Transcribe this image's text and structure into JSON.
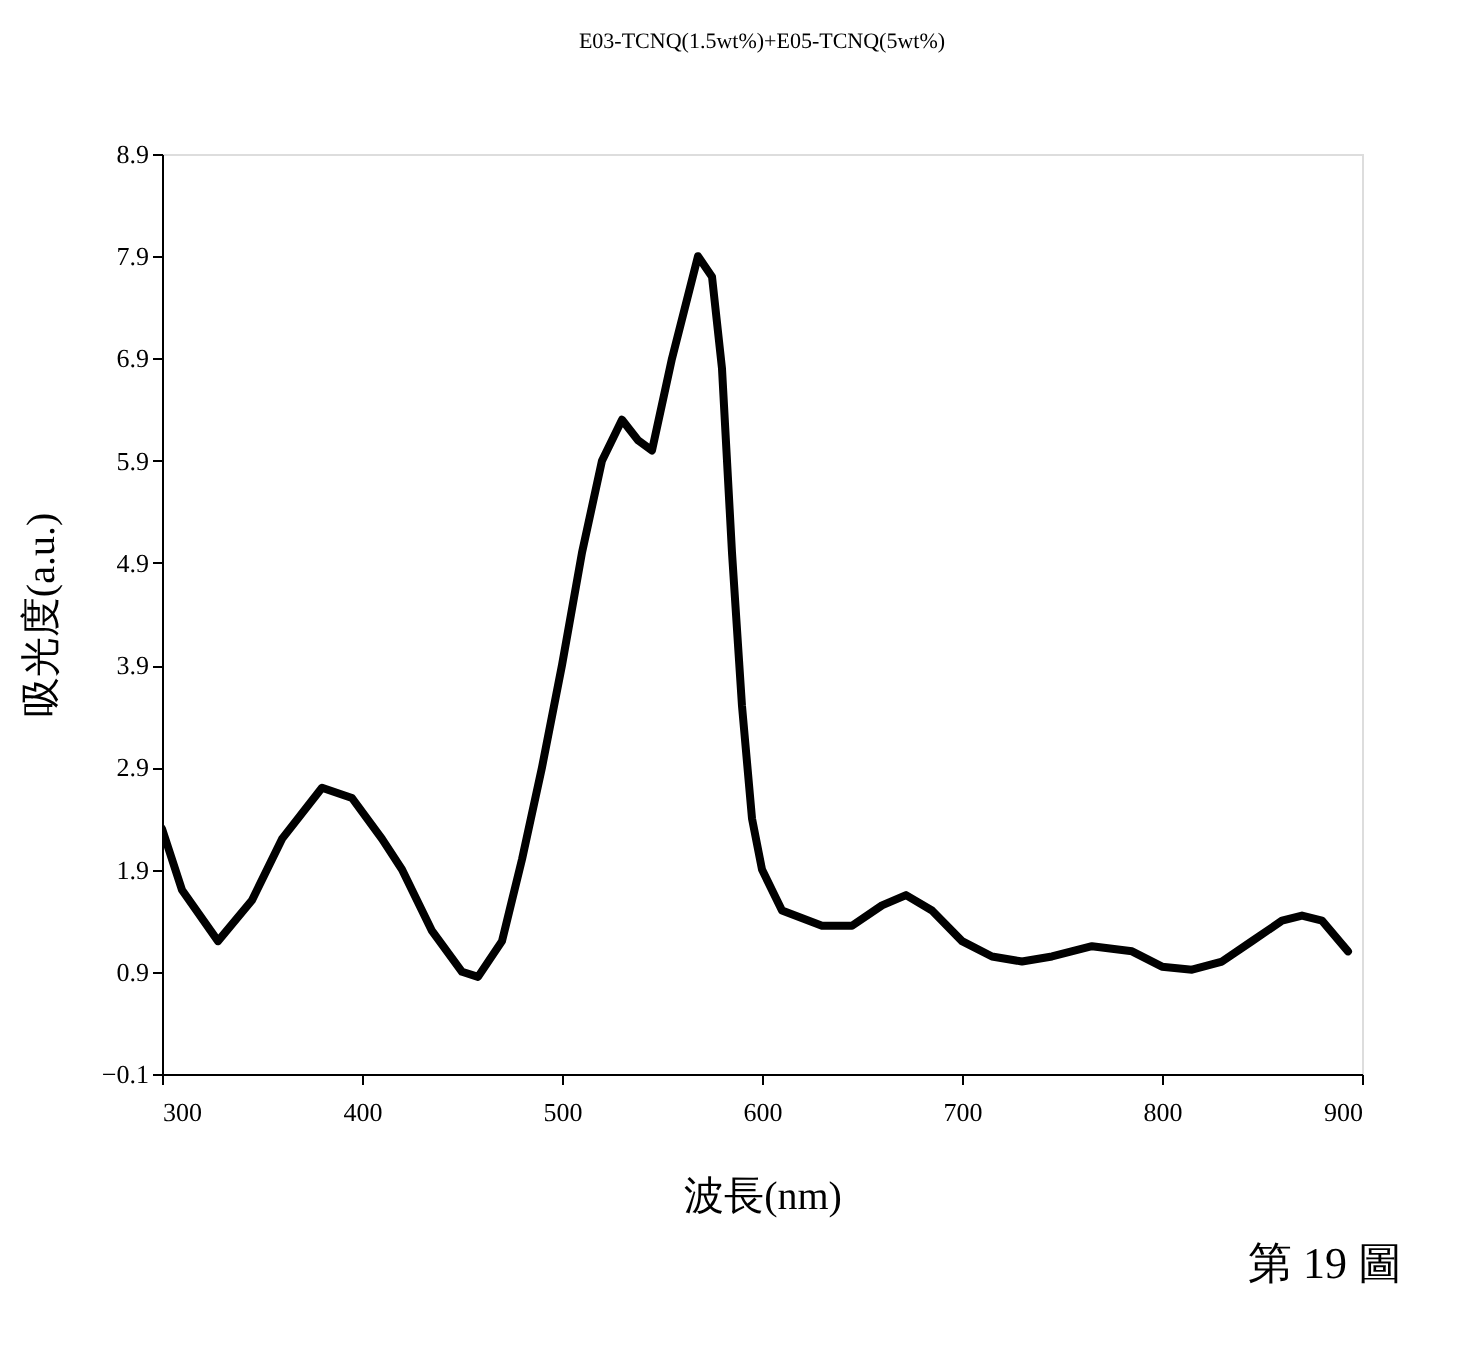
{
  "chart_data": {
    "type": "line",
    "title": "E03-TCNQ(1.5wt%)+E05-TCNQ(5wt%)",
    "xlabel": "波長(nm)",
    "ylabel": "吸光度(a.u.)",
    "x": [
      300,
      310,
      328,
      345,
      360,
      380,
      395,
      410,
      420,
      435,
      450,
      458,
      470,
      480,
      490,
      500,
      510,
      520,
      530,
      538,
      545,
      555,
      568,
      575,
      580,
      585,
      590,
      595,
      600,
      610,
      630,
      645,
      660,
      672,
      685,
      700,
      715,
      730,
      745,
      765,
      785,
      800,
      815,
      830,
      845,
      860,
      870,
      880,
      893
    ],
    "series": [
      {
        "color": "#000000",
        "values": [
          2.3,
          1.7,
          1.2,
          1.6,
          2.2,
          2.7,
          2.6,
          2.2,
          1.9,
          1.3,
          0.9,
          0.85,
          1.2,
          2.0,
          2.9,
          3.9,
          5.0,
          5.9,
          6.3,
          6.1,
          6.0,
          6.9,
          7.9,
          7.7,
          6.8,
          5.0,
          3.5,
          2.4,
          1.9,
          1.5,
          1.35,
          1.35,
          1.55,
          1.65,
          1.5,
          1.2,
          1.05,
          1.0,
          1.05,
          1.15,
          1.1,
          0.95,
          0.92,
          1.0,
          1.2,
          1.4,
          1.45,
          1.4,
          1.1
        ]
      }
    ],
    "xlim": [
      300,
      900
    ],
    "xticks": [
      300,
      400,
      500,
      600,
      700,
      800,
      900
    ],
    "ylim": [
      -0.1,
      8.9
    ],
    "yticks": [
      -0.1,
      0.9,
      1.9,
      2.9,
      3.9,
      4.9,
      5.9,
      6.9,
      7.9,
      8.9
    ],
    "grid": false,
    "marker": "none",
    "line_style": "solid",
    "annotations": [
      "第 19 圖"
    ]
  }
}
